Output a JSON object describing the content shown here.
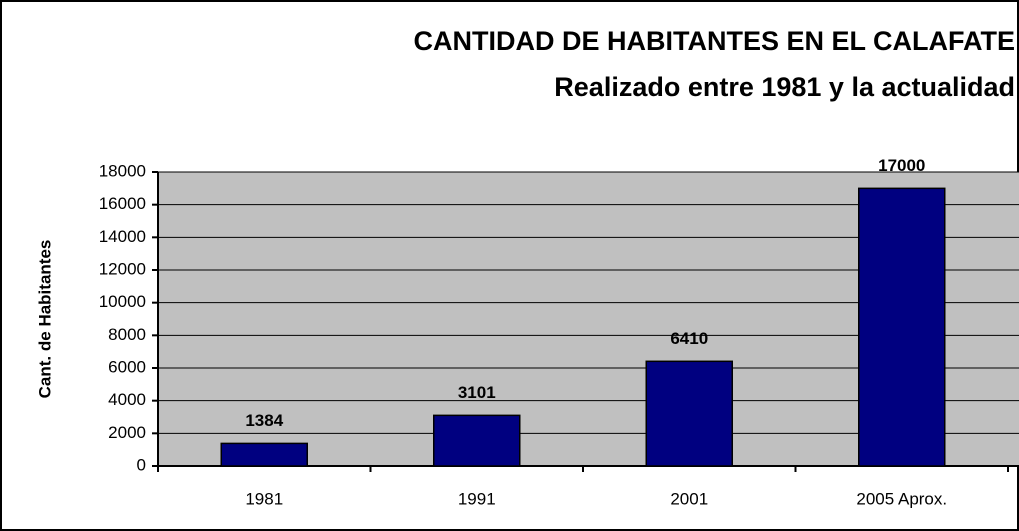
{
  "chart_data": {
    "type": "bar",
    "title": "CANTIDAD DE HABITANTES EN EL CALAFATE",
    "subtitle": "Realizado entre 1981 y la actualidad",
    "y_label": "Cant. de Habitantes",
    "categories": [
      "1981",
      "1991",
      "2001",
      "2005 Aprox."
    ],
    "values": [
      1384,
      3101,
      6410,
      17000
    ],
    "color": "#000080",
    "ylim": [
      0,
      18000
    ],
    "yticks": [
      0,
      2000,
      4000,
      6000,
      8000,
      10000,
      12000,
      14000,
      16000,
      18000
    ],
    "grid": true
  }
}
